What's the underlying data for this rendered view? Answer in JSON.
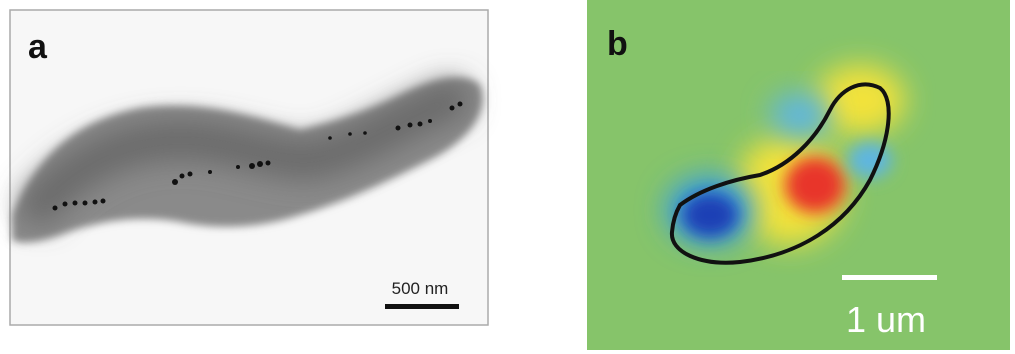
{
  "panels": [
    {
      "label": "a",
      "scale_bar": "500 nm"
    },
    {
      "label": "b",
      "scale_bar": "1 um"
    }
  ]
}
